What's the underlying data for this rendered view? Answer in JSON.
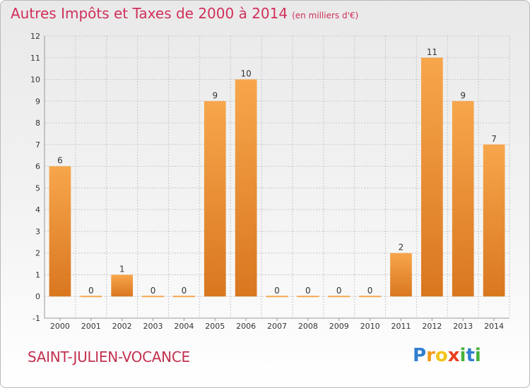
{
  "title": "Autres Impôts et Taxes de 2000 à 2014",
  "unit": "(en milliers d'€)",
  "commune": "SAINT-JULIEN-VOCANCE",
  "logo": {
    "letters": [
      "P",
      "r",
      "o",
      "x",
      "i",
      "t",
      "i"
    ],
    "colors": [
      "#2f7fd0",
      "#f39a1b",
      "#f3c51b",
      "#e8401f",
      "#46b23a",
      "#2f7fd0",
      "#46b23a"
    ]
  },
  "colors": {
    "bar_light": "#f7a64c",
    "bar_dark": "#d9771f",
    "grid": "#c8c8c8",
    "title": "#d0305a"
  },
  "chart_data": {
    "type": "bar",
    "title": "Autres Impôts et Taxes de 2000 à 2014",
    "subtitle": "(en milliers d'€)",
    "categories": [
      "2000",
      "2001",
      "2002",
      "2003",
      "2004",
      "2005",
      "2006",
      "2007",
      "2008",
      "2009",
      "2010",
      "2011",
      "2012",
      "2013",
      "2014"
    ],
    "values": [
      6,
      0,
      1,
      0,
      0,
      9,
      10,
      0,
      0,
      0,
      0,
      2,
      11,
      9,
      7
    ],
    "ylim": [
      -1,
      12
    ],
    "yticks": [
      -1,
      0,
      1,
      2,
      3,
      4,
      5,
      6,
      7,
      8,
      9,
      10,
      11,
      12
    ],
    "ytick_labels": [
      "-1",
      "0",
      "1",
      "2",
      "3",
      "4",
      "5",
      "6",
      "7",
      "8",
      "9",
      "10",
      "11",
      "12"
    ],
    "grid": true,
    "legend": "none",
    "xlabel": "",
    "ylabel": ""
  }
}
